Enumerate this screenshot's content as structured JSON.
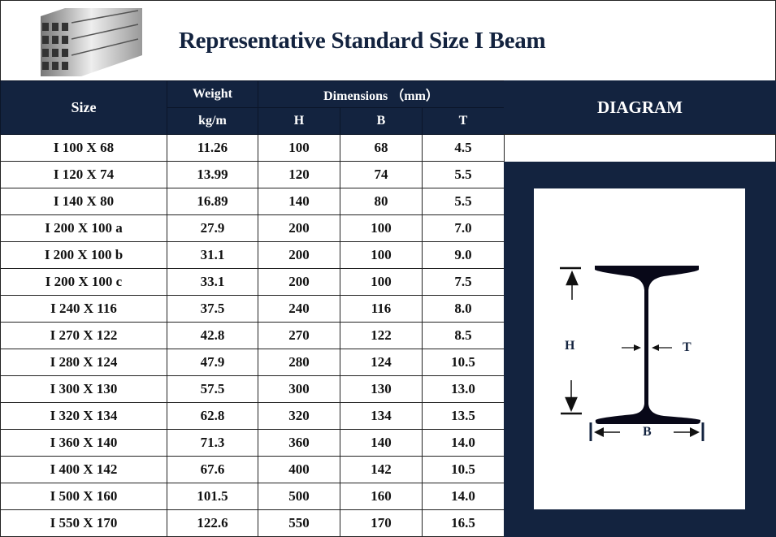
{
  "title": "Representative Standard Size I Beam",
  "header": {
    "size": "Size",
    "weight": "Weight",
    "weight_unit": "kg/m",
    "dimensions": "Dimensions （mm）",
    "h": "H",
    "b": "B",
    "t": "T",
    "diagram": "DIAGRAM"
  },
  "rows": [
    [
      "I 100 X 68",
      "11.26",
      "100",
      "68",
      "4.5"
    ],
    [
      "I 120 X 74",
      "13.99",
      "120",
      "74",
      "5.5"
    ],
    [
      "I 140 X 80",
      "16.89",
      "140",
      "80",
      "5.5"
    ],
    [
      "I 200 X 100 a",
      "27.9",
      "200",
      "100",
      "7.0"
    ],
    [
      "I 200 X 100 b",
      "31.1",
      "200",
      "100",
      "9.0"
    ],
    [
      "I 200 X 100 c",
      "33.1",
      "200",
      "100",
      "7.5"
    ],
    [
      "I 240 X 116",
      "37.5",
      "240",
      "116",
      "8.0"
    ],
    [
      "I 270 X 122",
      "42.8",
      "270",
      "122",
      "8.5"
    ],
    [
      "I 280 X 124",
      "47.9",
      "280",
      "124",
      "10.5"
    ],
    [
      "I 300 X 130",
      "57.5",
      "300",
      "130",
      "13.0"
    ],
    [
      "I 320 X 134",
      "62.8",
      "320",
      "134",
      "13.5"
    ],
    [
      "I 360 X 140",
      "71.3",
      "360",
      "140",
      "14.0"
    ],
    [
      "I 400 X 142",
      "67.6",
      "400",
      "142",
      "10.5"
    ],
    [
      "I 500 X 160",
      "101.5",
      "500",
      "160",
      "14.0"
    ],
    [
      "I 550 X 170",
      "122.6",
      "550",
      "170",
      "16.5"
    ]
  ],
  "diagram_labels": {
    "h": "H",
    "t": "T",
    "b": "B"
  },
  "colors": {
    "navy": "#13233f"
  }
}
